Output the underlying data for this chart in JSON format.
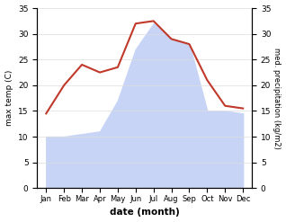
{
  "months": [
    "Jan",
    "Feb",
    "Mar",
    "Apr",
    "May",
    "Jun",
    "Jul",
    "Aug",
    "Sep",
    "Oct",
    "Nov",
    "Dec"
  ],
  "temp": [
    14.5,
    20.0,
    24.0,
    22.5,
    23.5,
    32.0,
    32.5,
    29.0,
    28.0,
    21.0,
    16.0,
    15.5
  ],
  "precip": [
    10.0,
    10.0,
    10.5,
    11.0,
    17.0,
    27.0,
    32.0,
    29.0,
    28.0,
    15.0,
    15.0,
    14.5
  ],
  "temp_color": "#c0392b",
  "precip_fill_color": "#c8d4f5",
  "ylim_left": [
    0,
    35
  ],
  "ylim_right": [
    0,
    35
  ],
  "ylabel_left": "max temp (C)",
  "ylabel_right": "med. precipitation (kg/m2)",
  "xlabel": "date (month)",
  "bg_color": "#ffffff",
  "yticks": [
    0,
    5,
    10,
    15,
    20,
    25,
    30,
    35
  ]
}
